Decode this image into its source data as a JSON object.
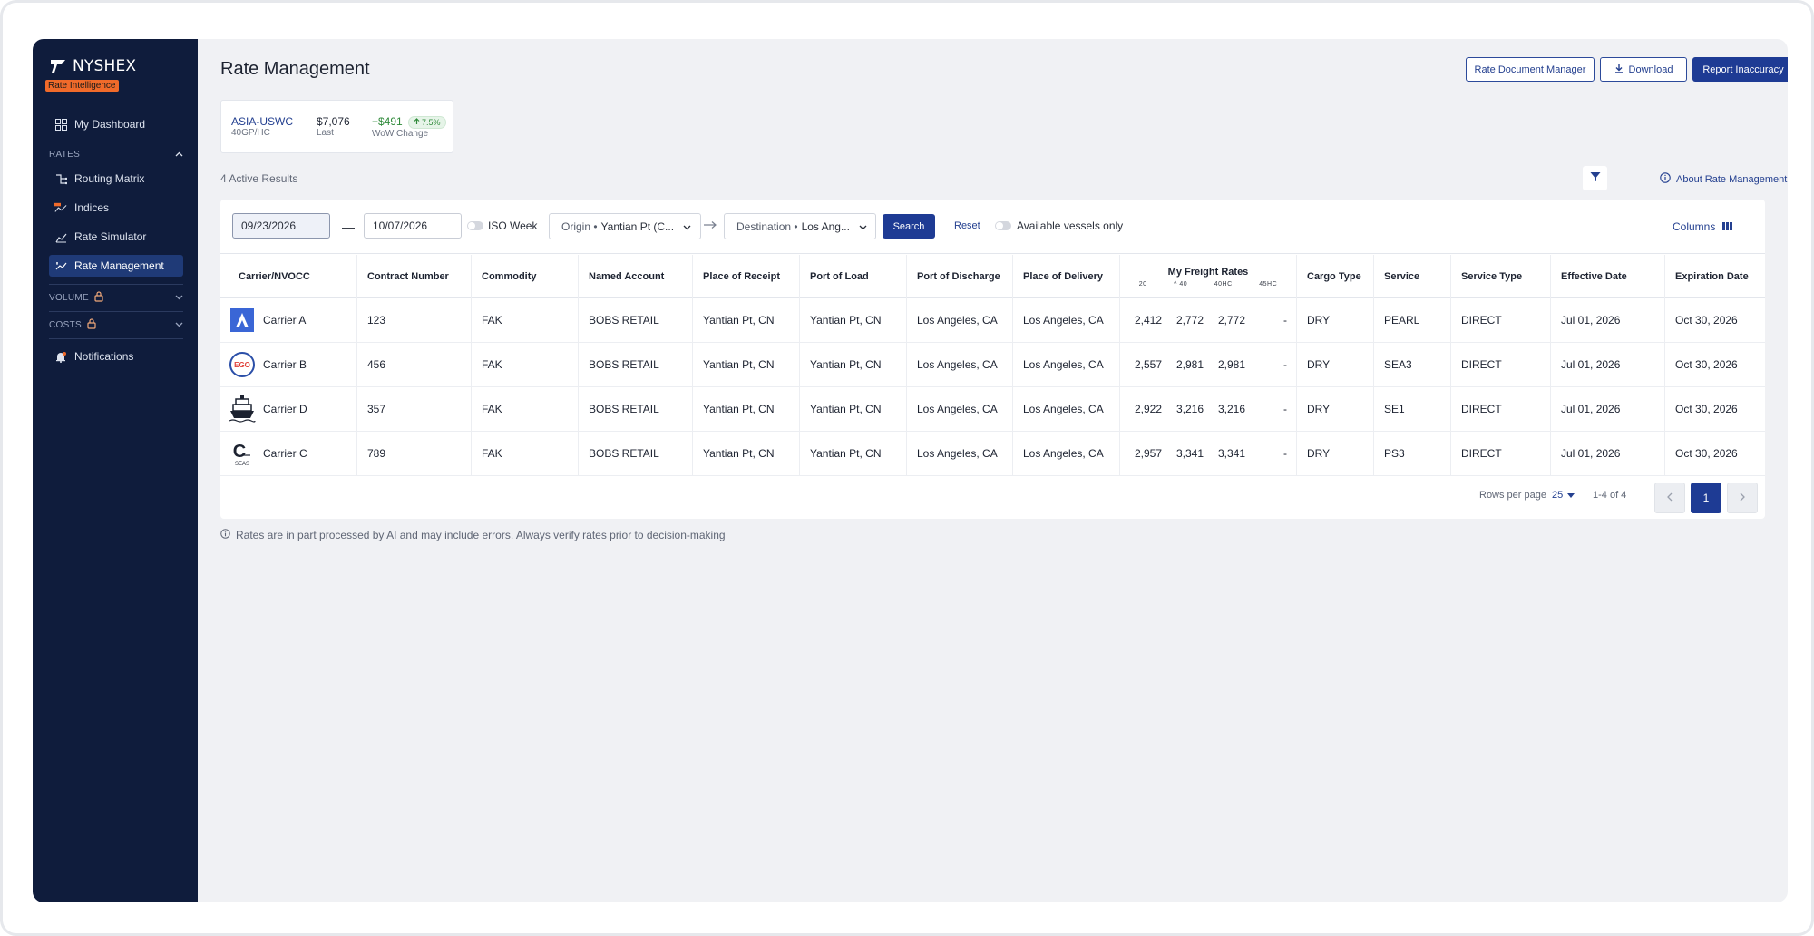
{
  "brand": {
    "name": "NYSHEX",
    "badge": "Rate Intelligence"
  },
  "sidebar": {
    "dashboard": "My Dashboard",
    "rates_section": "RATES",
    "rates_items": [
      {
        "label": "Routing Matrix",
        "icon": "routing-icon"
      },
      {
        "label": "Indices",
        "icon": "indices-icon"
      },
      {
        "label": "Rate Simulator",
        "icon": "chart-line-icon"
      },
      {
        "label": "Rate Management",
        "icon": "rate-management-icon",
        "active": true
      }
    ],
    "volume_section": "VOLUME",
    "costs_section": "COSTS",
    "notifications": "Notifications"
  },
  "header": {
    "title": "Rate Management",
    "rate_doc_btn": "Rate Document Manager",
    "download_btn": "Download",
    "report_btn": "Report Inaccuracy"
  },
  "kpi": {
    "lane": "ASIA-USWC",
    "equipment": "40GP/HC",
    "last_value": "$7,076",
    "last_label": "Last",
    "change_value": "+$491",
    "change_pct": "7.5%",
    "change_label": "WoW Change"
  },
  "results": {
    "count_text": "4 Active Results",
    "about_link": "About Rate Management"
  },
  "toolbar": {
    "date_from": "09/23/2026",
    "date_to": "10/07/2026",
    "iso_week": "ISO Week",
    "origin_label": "Origin •",
    "origin_value": "Yantian Pt (C...",
    "destination_label": "Destination •",
    "destination_value": "Los Ang...",
    "search": "Search",
    "reset": "Reset",
    "available_vessels": "Available vessels only",
    "columns": "Columns"
  },
  "table": {
    "headers": {
      "carrier": "Carrier/NVOCC",
      "contract": "Contract Number",
      "commodity": "Commodity",
      "named_account": "Named Account",
      "place_receipt": "Place of Receipt",
      "port_load": "Port of Load",
      "port_discharge": "Port of Discharge",
      "place_delivery": "Place of Delivery",
      "freight_rates": "My Freight Rates",
      "rate_20": "20",
      "rate_40": "40",
      "rate_40hc": "40HC",
      "rate_45hc": "45HC",
      "cargo_type": "Cargo Type",
      "service": "Service",
      "service_type": "Service Type",
      "effective_date": "Effective Date",
      "expiration_date": "Expiration Date"
    },
    "rows": [
      {
        "carrier": "Carrier A",
        "logo": "carrier-a-logo-icon",
        "contract": "123",
        "commodity": "FAK",
        "named_account": "BOBS RETAIL",
        "place_receipt": "Yantian Pt, CN",
        "port_load": "Yantian Pt, CN",
        "port_discharge": "Los Angeles, CA",
        "place_delivery": "Los Angeles, CA",
        "r20": "2,412",
        "r40": "2,772",
        "r40hc": "2,772",
        "r45hc": "-",
        "cargo_type": "DRY",
        "service": "PEARL",
        "service_type": "DIRECT",
        "effective": "Jul 01, 2026",
        "expiration": "Oct 30, 2026"
      },
      {
        "carrier": "Carrier B",
        "logo": "carrier-b-logo-icon",
        "logo_text": "EGO",
        "contract": "456",
        "commodity": "FAK",
        "named_account": "BOBS RETAIL",
        "place_receipt": "Yantian Pt, CN",
        "port_load": "Yantian Pt, CN",
        "port_discharge": "Los Angeles, CA",
        "place_delivery": "Los Angeles, CA",
        "r20": "2,557",
        "r40": "2,981",
        "r40hc": "2,981",
        "r45hc": "-",
        "cargo_type": "DRY",
        "service": "SEA3",
        "service_type": "DIRECT",
        "effective": "Jul 01, 2026",
        "expiration": "Oct 30, 2026"
      },
      {
        "carrier": "Carrier D",
        "logo": "ship-logo-icon",
        "contract": "357",
        "commodity": "FAK",
        "named_account": "BOBS RETAIL",
        "place_receipt": "Yantian Pt, CN",
        "port_load": "Yantian Pt, CN",
        "port_discharge": "Los Angeles, CA",
        "place_delivery": "Los Angeles, CA",
        "r20": "2,922",
        "r40": "3,216",
        "r40hc": "3,216",
        "r45hc": "-",
        "cargo_type": "DRY",
        "service": "SE1",
        "service_type": "DIRECT",
        "effective": "Jul 01, 2026",
        "expiration": "Oct 30, 2026"
      },
      {
        "carrier": "Carrier C",
        "logo": "carrier-c-logo-icon",
        "logo_text": "SEAS",
        "contract": "789",
        "commodity": "FAK",
        "named_account": "BOBS RETAIL",
        "place_receipt": "Yantian Pt, CN",
        "port_load": "Yantian Pt, CN",
        "port_discharge": "Los Angeles, CA",
        "place_delivery": "Los Angeles, CA",
        "r20": "2,957",
        "r40": "3,341",
        "r40hc": "3,341",
        "r45hc": "-",
        "cargo_type": "DRY",
        "service": "PS3",
        "service_type": "DIRECT",
        "effective": "Jul 01, 2026",
        "expiration": "Oct 30, 2026"
      }
    ]
  },
  "pagination": {
    "rows_per_page_label": "Rows per page",
    "rows_per_page": "25",
    "range": "1-4 of 4",
    "current_page": "1"
  },
  "disclaimer": "Rates are in part processed by AI and may include errors. Always verify rates prior to decision-making",
  "colors": {
    "sidebar_bg": "#0f1c3c",
    "primary": "#1e3b94",
    "badge": "#f06a2a",
    "positive": "#2f8a3a"
  }
}
